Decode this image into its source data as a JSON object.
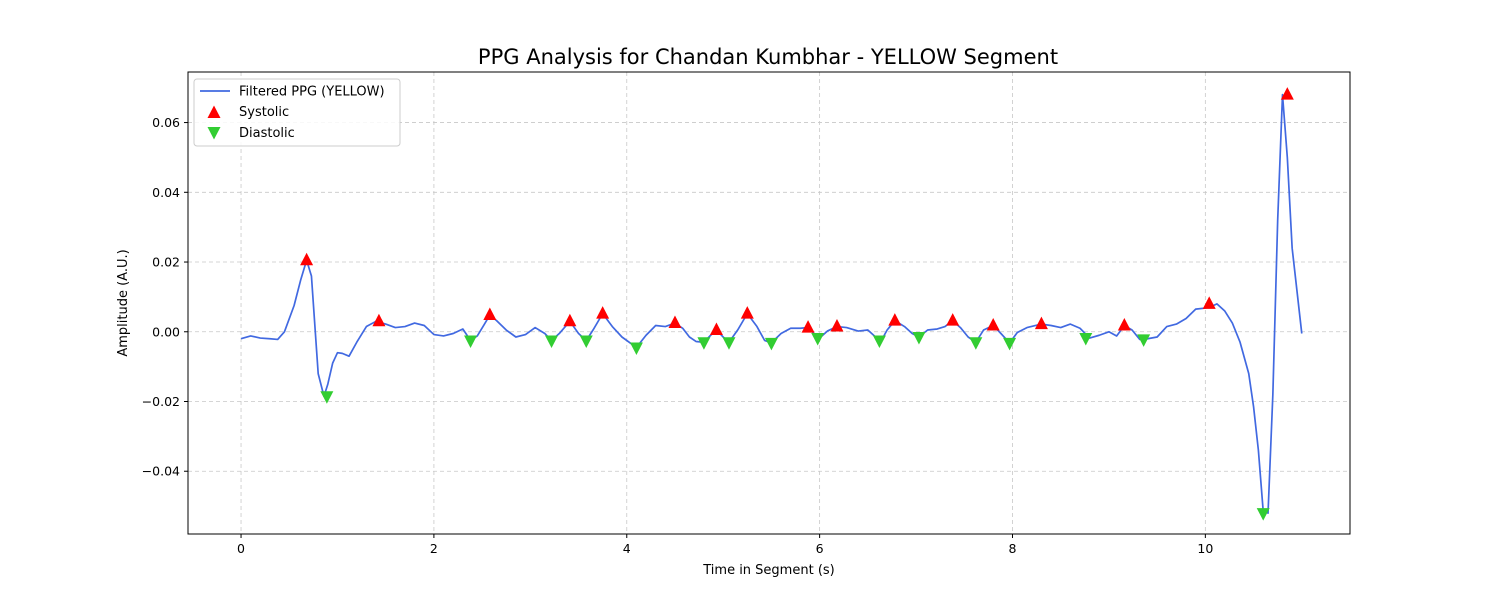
{
  "chart_data": {
    "type": "line",
    "title": "PPG Analysis for Chandan Kumbhar - YELLOW Segment",
    "xlabel": "Time in Segment (s)",
    "ylabel": "Amplitude (A.U.)",
    "xlim": [
      -0.55,
      11.5
    ],
    "ylim": [
      -0.058,
      0.0745
    ],
    "xticks": [
      0,
      2,
      4,
      6,
      8,
      10
    ],
    "xtick_labels": [
      "0",
      "2",
      "4",
      "6",
      "8",
      "10"
    ],
    "yticks": [
      -0.04,
      -0.02,
      0.0,
      0.02,
      0.04,
      0.06
    ],
    "ytick_labels": [
      "−0.04",
      "−0.02",
      "0.00",
      "0.02",
      "0.04",
      "0.06"
    ],
    "grid": true,
    "legend_position": "upper-left",
    "series": [
      {
        "name": "Filtered PPG (YELLOW)",
        "type": "line",
        "color": "#4169e1",
        "x": [
          0.0,
          0.1,
          0.2,
          0.3,
          0.38,
          0.45,
          0.55,
          0.62,
          0.68,
          0.73,
          0.8,
          0.86,
          0.9,
          0.95,
          1.0,
          1.05,
          1.12,
          1.2,
          1.3,
          1.4,
          1.5,
          1.6,
          1.7,
          1.8,
          1.9,
          2.0,
          2.1,
          2.2,
          2.3,
          2.38,
          2.45,
          2.52,
          2.58,
          2.65,
          2.75,
          2.85,
          2.95,
          3.05,
          3.15,
          3.22,
          3.3,
          3.41,
          3.5,
          3.58,
          3.65,
          3.75,
          3.85,
          3.95,
          4.1,
          4.2,
          4.3,
          4.4,
          4.5,
          4.58,
          4.65,
          4.72,
          4.8,
          4.87,
          4.93,
          5.0,
          5.06,
          5.15,
          5.25,
          5.35,
          5.43,
          5.5,
          5.6,
          5.7,
          5.8,
          5.88,
          5.94,
          6.0,
          6.08,
          6.18,
          6.28,
          6.4,
          6.5,
          6.58,
          6.64,
          6.7,
          6.78,
          6.88,
          6.96,
          7.03,
          7.12,
          7.22,
          7.3,
          7.38,
          7.46,
          7.54,
          7.62,
          7.7,
          7.8,
          7.88,
          7.97,
          8.05,
          8.15,
          8.3,
          8.4,
          8.5,
          8.6,
          8.7,
          8.8,
          8.9,
          9.0,
          9.08,
          9.16,
          9.24,
          9.32,
          9.4,
          9.5,
          9.6,
          9.7,
          9.8,
          9.9,
          10.0,
          10.06,
          10.12,
          10.2,
          10.28,
          10.36,
          10.45,
          10.5,
          10.55,
          10.6,
          10.65,
          10.7,
          10.75,
          10.8,
          10.85,
          10.9,
          11.0
        ],
        "y": [
          -0.002,
          -0.0012,
          -0.0018,
          -0.002,
          -0.0022,
          0.0,
          0.0075,
          0.015,
          0.0205,
          0.016,
          -0.012,
          -0.0185,
          -0.015,
          -0.009,
          -0.006,
          -0.0062,
          -0.007,
          -0.003,
          0.0015,
          0.003,
          0.0022,
          0.0012,
          0.0015,
          0.0025,
          0.0018,
          -0.0008,
          -0.0012,
          -0.0005,
          0.0008,
          -0.0025,
          -0.0012,
          0.002,
          0.0048,
          0.0032,
          0.0005,
          -0.0015,
          -0.0008,
          0.0012,
          -0.0005,
          -0.0025,
          -0.0005,
          0.003,
          -0.0005,
          -0.0025,
          0.0005,
          0.0052,
          0.0015,
          -0.0015,
          -0.0045,
          -0.001,
          0.0018,
          0.0015,
          0.0025,
          0.001,
          -0.0015,
          -0.0028,
          -0.003,
          -0.001,
          0.0005,
          -0.0015,
          -0.003,
          0.0005,
          0.0052,
          0.0015,
          -0.0025,
          -0.0032,
          -0.0005,
          0.001,
          0.001,
          0.0012,
          -0.0005,
          -0.0018,
          0.0002,
          0.0015,
          0.0012,
          0.0002,
          0.0005,
          -0.0015,
          -0.0025,
          0.0005,
          0.0032,
          0.0015,
          -0.0005,
          -0.0015,
          0.0005,
          0.0008,
          0.0015,
          0.0032,
          0.0012,
          -0.0015,
          -0.003,
          0.0005,
          0.0018,
          -0.0005,
          -0.0032,
          -0.0002,
          0.0012,
          0.0022,
          0.0018,
          0.0012,
          0.0022,
          0.001,
          -0.0018,
          -0.001,
          0.0,
          -0.0012,
          0.0018,
          0.0005,
          -0.0022,
          -0.002,
          -0.0015,
          0.0015,
          0.0022,
          0.0038,
          0.0065,
          0.0068,
          0.0072,
          0.008,
          0.006,
          0.0025,
          -0.003,
          -0.012,
          -0.0215,
          -0.034,
          -0.0515,
          -0.052,
          -0.018,
          0.032,
          0.068,
          0.05,
          0.024,
          -0.0005
        ]
      },
      {
        "name": "Systolic",
        "type": "scatter",
        "marker": "triangle-up",
        "color": "#ff0000",
        "x": [
          0.68,
          1.43,
          2.58,
          3.41,
          3.75,
          4.5,
          4.93,
          5.25,
          5.88,
          6.18,
          6.78,
          7.38,
          7.8,
          8.3,
          9.16,
          10.04,
          10.85
        ],
        "y": [
          0.0205,
          0.003,
          0.0048,
          0.003,
          0.0052,
          0.0025,
          0.0005,
          0.0052,
          0.0012,
          0.0015,
          0.0032,
          0.0032,
          0.0018,
          0.0022,
          0.0018,
          0.008,
          0.068
        ]
      },
      {
        "name": "Diastolic",
        "type": "scatter",
        "marker": "triangle-down",
        "color": "#32cd32",
        "x": [
          0.89,
          2.38,
          3.22,
          3.58,
          4.1,
          4.8,
          5.06,
          5.5,
          5.98,
          6.62,
          7.03,
          7.62,
          7.97,
          8.76,
          9.36,
          10.6
        ],
        "y": [
          -0.0185,
          -0.0025,
          -0.0025,
          -0.0025,
          -0.0045,
          -0.003,
          -0.003,
          -0.0032,
          -0.0018,
          -0.0025,
          -0.0015,
          -0.003,
          -0.0032,
          -0.0018,
          -0.0022,
          -0.052
        ]
      }
    ]
  }
}
